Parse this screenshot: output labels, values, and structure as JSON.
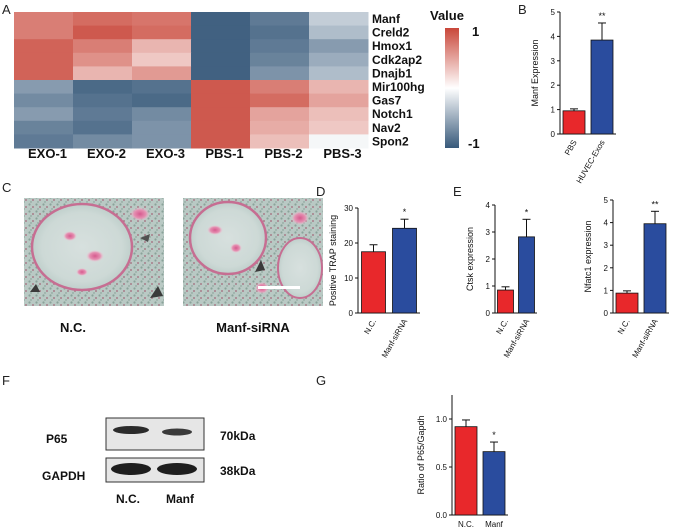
{
  "panels": {
    "A": "A",
    "B": "B",
    "C": "C",
    "D": "D",
    "E": "E",
    "F": "F",
    "G": "G"
  },
  "colors": {
    "red": "#e8282b",
    "blue": "#2a4c9e",
    "heat_high": "#c9473a",
    "heat_mid": "#ffffff",
    "heat_low": "#37597a"
  },
  "micrographs": {
    "left_label": "N.C.",
    "right_label": "Manf-siRNA"
  },
  "western_blot": {
    "rows": [
      {
        "protein": "P65",
        "size": "70kDa"
      },
      {
        "protein": "GAPDH",
        "size": "38kDa"
      }
    ],
    "lanes": [
      "N.C.",
      "Manf"
    ]
  },
  "chart_data": [
    {
      "panel": "A",
      "type": "heatmap",
      "columns": [
        "EXO-1",
        "EXO-2",
        "EXO-3",
        "PBS-1",
        "PBS-2",
        "PBS-3"
      ],
      "rows": [
        "Manf",
        "Creld2",
        "Hmox1",
        "Cdk2ap2",
        "Dnajb1",
        "Mir100hg",
        "Gas7",
        "Notch1",
        "Nav2",
        "Spon2"
      ],
      "values": [
        [
          0.7,
          0.8,
          0.75,
          -0.95,
          -0.8,
          -0.3
        ],
        [
          0.7,
          0.9,
          0.8,
          -0.95,
          -0.85,
          -0.4
        ],
        [
          0.85,
          0.7,
          0.4,
          -0.95,
          -0.8,
          -0.6
        ],
        [
          0.85,
          0.6,
          0.3,
          -0.95,
          -0.75,
          -0.5
        ],
        [
          0.85,
          0.4,
          0.55,
          -0.95,
          -0.65,
          -0.4
        ],
        [
          -0.6,
          -0.9,
          -0.85,
          0.9,
          0.7,
          0.4
        ],
        [
          -0.7,
          -0.85,
          -0.9,
          0.9,
          0.8,
          0.5
        ],
        [
          -0.6,
          -0.8,
          -0.7,
          0.9,
          0.5,
          0.35
        ],
        [
          -0.75,
          -0.85,
          -0.65,
          0.9,
          0.45,
          0.3
        ],
        [
          -0.8,
          -0.7,
          -0.65,
          0.9,
          0.35,
          -0.05
        ]
      ],
      "legend_title": "Value",
      "legend_ticks": [
        "1",
        "-1"
      ],
      "range": [
        -1,
        1
      ]
    },
    {
      "panel": "B",
      "type": "bar",
      "categories": [
        "PBS",
        "HUVEC-Exos"
      ],
      "values": [
        0.95,
        3.85
      ],
      "errors": [
        0.08,
        0.7
      ],
      "ylabel": "Manf Expression",
      "ylim": [
        0,
        5
      ],
      "yticks": [
        "0",
        "1",
        "2",
        "3",
        "4",
        "5"
      ],
      "significance": "**"
    },
    {
      "panel": "D",
      "type": "bar",
      "categories": [
        "N.C.",
        "Manf-siRNA"
      ],
      "values": [
        17.5,
        24.2
      ],
      "errors": [
        2.0,
        2.6
      ],
      "ylabel": "Positive TRAP staining",
      "ylim": [
        0,
        30
      ],
      "yticks": [
        "0",
        "10",
        "20",
        "30"
      ],
      "significance": "*"
    },
    {
      "panel": "E",
      "type": "bar",
      "categories": [
        "N.C.",
        "Manf-siRNA"
      ],
      "values": [
        0.85,
        2.82
      ],
      "errors": [
        0.12,
        0.65
      ],
      "ylabel": "Ctsk expression",
      "ylim": [
        0,
        4
      ],
      "yticks": [
        "0",
        "1",
        "2",
        "3",
        "4"
      ],
      "significance": "*"
    },
    {
      "panel": "E2",
      "type": "bar",
      "categories": [
        "N.C.",
        "Manf-siRNA"
      ],
      "values": [
        0.88,
        3.95
      ],
      "errors": [
        0.1,
        0.55
      ],
      "ylabel": "Nfatc1 expression",
      "ylim": [
        0,
        5
      ],
      "yticks": [
        "0",
        "1",
        "2",
        "3",
        "4",
        "5"
      ],
      "significance": "**"
    },
    {
      "panel": "G",
      "type": "bar",
      "categories": [
        "N.C.",
        "Manf"
      ],
      "values": [
        0.92,
        0.66
      ],
      "errors": [
        0.07,
        0.1
      ],
      "ylabel": "Ratio of P65/Gapdh",
      "ylim": [
        0,
        1.25
      ],
      "yticks": [
        "0.0",
        "0.5",
        "1.0"
      ],
      "significance": "*"
    }
  ]
}
